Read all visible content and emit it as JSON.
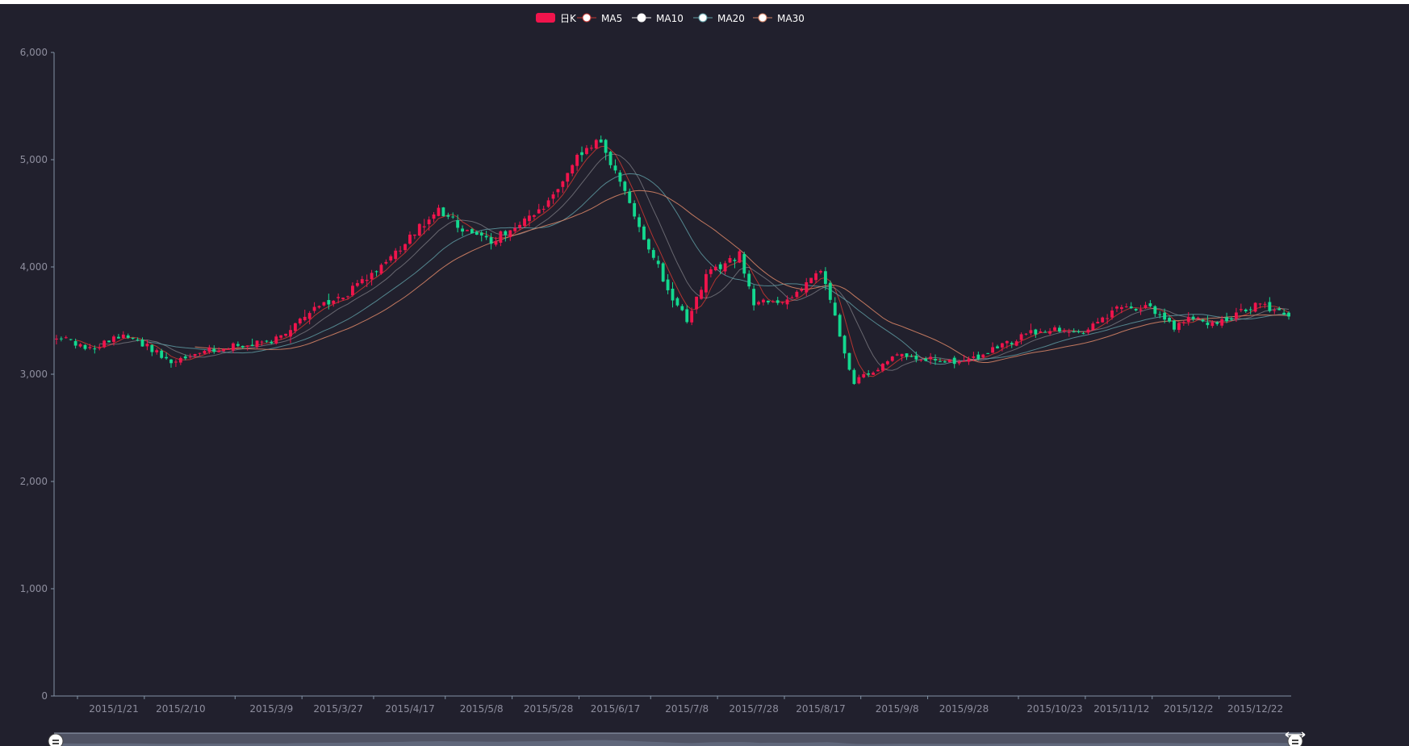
{
  "colors": {
    "background": "#21202d",
    "up": "#ec0000",
    "up_display": "#f0144c",
    "down": "#00da3c",
    "down_display": "#13d88f",
    "axis": "#8392a5",
    "ma5": "#c23531",
    "ma10": "#eeeeee",
    "ma20": "#61a0a8",
    "ma30": "#d48265"
  },
  "legend": {
    "position": "top-center",
    "items": [
      {
        "name": "日K",
        "type": "candlestick",
        "color": "#f0144c"
      },
      {
        "name": "MA5",
        "type": "line",
        "color": "#c23531"
      },
      {
        "name": "MA10",
        "type": "line",
        "color": "#eeeeee"
      },
      {
        "name": "MA20",
        "type": "line",
        "color": "#61a0a8"
      },
      {
        "name": "MA30",
        "type": "line",
        "color": "#d48265"
      }
    ]
  },
  "chart_data": {
    "type": "candlestick",
    "title": "",
    "xlabel": "",
    "ylabel": "",
    "ylim": [
      0,
      6000
    ],
    "y_ticks": [
      "0",
      "1,000",
      "2,000",
      "3,000",
      "4,000",
      "5,000",
      "6,000"
    ],
    "x_tick_labels": [
      "2015/1/21",
      "2015/2/10",
      "2015/3/9",
      "2015/3/27",
      "2015/4/17",
      "2015/5/8",
      "2015/5/28",
      "2015/6/17",
      "2015/7/8",
      "2015/7/28",
      "2015/8/17",
      "2015/9/8",
      "2015/9/28",
      "2015/10/23",
      "2015/11/12",
      "2015/12/2",
      "2015/12/22"
    ],
    "grid": false,
    "datazoom_slider": true,
    "date_range": [
      "2015/1/5",
      "2015/12/31"
    ],
    "close_keyframes": [
      [
        "2015/1/5",
        3350
      ],
      [
        "2015/1/14",
        3230
      ],
      [
        "2015/1/22",
        3360
      ],
      [
        "2015/1/30",
        3260
      ],
      [
        "2015/2/6",
        3100
      ],
      [
        "2015/2/16",
        3220
      ],
      [
        "2015/3/3",
        3280
      ],
      [
        "2015/3/9",
        3300
      ],
      [
        "2015/3/20",
        3620
      ],
      [
        "2015/3/27",
        3690
      ],
      [
        "2015/4/8",
        3960
      ],
      [
        "2015/4/17",
        4280
      ],
      [
        "2015/4/27",
        4530
      ],
      [
        "2015/5/6",
        4300
      ],
      [
        "2015/5/12",
        4250
      ],
      [
        "2015/5/20",
        4400
      ],
      [
        "2015/5/28",
        4600
      ],
      [
        "2015/6/5",
        5020
      ],
      [
        "2015/6/12",
        5170
      ],
      [
        "2015/6/18",
        4780
      ],
      [
        "2015/6/26",
        4190
      ],
      [
        "2015/7/3",
        3700
      ],
      [
        "2015/7/8",
        3500
      ],
      [
        "2015/7/14",
        3920
      ],
      [
        "2015/7/23",
        4120
      ],
      [
        "2015/7/28",
        3660
      ],
      [
        "2015/8/6",
        3700
      ],
      [
        "2015/8/17",
        3990
      ],
      [
        "2015/8/24",
        3200
      ],
      [
        "2015/8/26",
        2930
      ],
      [
        "2015/9/8",
        3170
      ],
      [
        "2015/9/28",
        3100
      ],
      [
        "2015/10/16",
        3390
      ],
      [
        "2015/10/23",
        3410
      ],
      [
        "2015/10/30",
        3380
      ],
      [
        "2015/11/12",
        3630
      ],
      [
        "2015/11/20",
        3620
      ],
      [
        "2015/11/27",
        3440
      ],
      [
        "2015/12/2",
        3530
      ],
      [
        "2015/12/10",
        3460
      ],
      [
        "2015/12/22",
        3650
      ],
      [
        "2015/12/31",
        3570
      ]
    ],
    "moving_averages": [
      {
        "name": "MA5",
        "period": 5
      },
      {
        "name": "MA10",
        "period": 10
      },
      {
        "name": "MA20",
        "period": 20
      },
      {
        "name": "MA30",
        "period": 30
      }
    ]
  }
}
